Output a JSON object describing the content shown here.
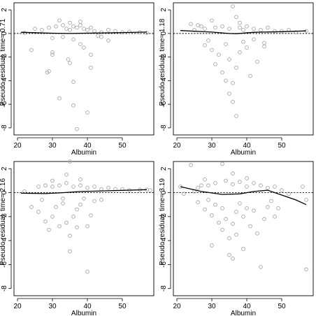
{
  "chart_data": [
    {
      "type": "scatter",
      "xlabel": "Albumin",
      "ylabel": "Pseudo-residual, time= 0.71",
      "xlim": [
        19,
        59
      ],
      "ylim": [
        -8.6,
        2.6
      ],
      "xticks": [
        20,
        30,
        40,
        50
      ],
      "yticks": [
        2,
        0,
        -2,
        -4,
        -6,
        -8
      ],
      "smooth": [
        [
          21,
          0.1
        ],
        [
          30,
          0.02
        ],
        [
          35,
          0.0
        ],
        [
          40,
          0.03
        ],
        [
          47,
          0.06
        ],
        [
          57,
          0.12
        ]
      ],
      "points": [
        [
          24,
          -1.4
        ],
        [
          30,
          -1.6
        ],
        [
          30,
          -1.8
        ],
        [
          29,
          -3.2
        ],
        [
          28.5,
          -3.3
        ],
        [
          32,
          -5.5
        ],
        [
          34.5,
          -2.2
        ],
        [
          35,
          -2.5
        ],
        [
          36,
          -4.1
        ],
        [
          36,
          -6.1
        ],
        [
          37,
          -8.1
        ],
        [
          38,
          -0.9
        ],
        [
          39,
          -1.2
        ],
        [
          40,
          -6.7
        ],
        [
          41,
          -1.8
        ],
        [
          41,
          -2.9
        ],
        [
          44,
          -0.3
        ],
        [
          46,
          -0.6
        ],
        [
          25,
          0.4
        ],
        [
          27,
          0.3
        ],
        [
          29,
          0.5
        ],
        [
          31,
          0.6
        ],
        [
          33,
          0.7
        ],
        [
          34,
          0.4
        ],
        [
          35,
          0.3
        ],
        [
          36,
          0.6
        ],
        [
          37,
          0.5
        ],
        [
          38,
          0.7
        ],
        [
          39,
          0.4
        ],
        [
          40,
          0.3
        ],
        [
          41,
          0.5
        ],
        [
          42,
          0.2
        ],
        [
          44,
          0.1
        ],
        [
          46,
          0.3
        ],
        [
          48,
          0.2
        ],
        [
          50,
          0.1
        ],
        [
          52,
          0.15
        ],
        [
          55,
          0.1
        ],
        [
          57,
          0.05
        ],
        [
          22,
          0.05
        ],
        [
          35,
          0.9
        ],
        [
          32,
          1.1
        ],
        [
          38,
          1.0
        ],
        [
          30,
          -0.4
        ],
        [
          33,
          -0.3
        ],
        [
          36,
          -0.5
        ],
        [
          43,
          -0.2
        ]
      ]
    },
    {
      "type": "scatter",
      "xlabel": "Albumin",
      "ylabel": "Pseudo-residual, time= 1.18",
      "xlim": [
        19,
        59
      ],
      "ylim": [
        -8.6,
        2.6
      ],
      "xticks": [
        20,
        30,
        40,
        50
      ],
      "yticks": [
        2,
        0,
        -2,
        -4,
        -6,
        -8
      ],
      "smooth": [
        [
          21,
          0.25
        ],
        [
          30,
          0.12
        ],
        [
          35,
          0.0
        ],
        [
          37,
          -0.02
        ],
        [
          42,
          0.1
        ],
        [
          50,
          0.15
        ],
        [
          57,
          0.22
        ]
      ],
      "points": [
        [
          24,
          0.8
        ],
        [
          26,
          0.7
        ],
        [
          27,
          0.6
        ],
        [
          28,
          -1.0
        ],
        [
          29,
          -0.6
        ],
        [
          30,
          -1.4
        ],
        [
          31,
          -2.6
        ],
        [
          32,
          -1.8
        ],
        [
          33,
          -3.3
        ],
        [
          34,
          -0.9
        ],
        [
          34,
          -4.0
        ],
        [
          35,
          -2.2
        ],
        [
          35,
          -5.1
        ],
        [
          36,
          -5.8
        ],
        [
          36,
          -4.2
        ],
        [
          37,
          -7.0
        ],
        [
          37,
          -2.9
        ],
        [
          38,
          -1.6
        ],
        [
          39,
          -0.7
        ],
        [
          40,
          -1.2
        ],
        [
          41,
          -3.6
        ],
        [
          42,
          -0.5
        ],
        [
          43,
          -2.4
        ],
        [
          45,
          -0.8
        ],
        [
          45,
          -1.1
        ],
        [
          36,
          2.3
        ],
        [
          37,
          1.4
        ],
        [
          30,
          1.1
        ],
        [
          38,
          0.9
        ],
        [
          25,
          0.3
        ],
        [
          28,
          0.4
        ],
        [
          31,
          0.5
        ],
        [
          33,
          0.6
        ],
        [
          35,
          0.4
        ],
        [
          38,
          0.5
        ],
        [
          40,
          0.6
        ],
        [
          42,
          0.4
        ],
        [
          44,
          0.3
        ],
        [
          46,
          0.5
        ],
        [
          48,
          0.2
        ],
        [
          50,
          0.2
        ],
        [
          52,
          0.3
        ],
        [
          54,
          0.1
        ],
        [
          57,
          0.2
        ],
        [
          39,
          0.3
        ]
      ]
    },
    {
      "type": "scatter",
      "xlabel": "Albumin",
      "ylabel": "Pseudo-residual, time= 2.16",
      "xlim": [
        19,
        59
      ],
      "ylim": [
        -8.6,
        2.6
      ],
      "xticks": [
        20,
        30,
        40,
        50
      ],
      "yticks": [
        2,
        0,
        -2,
        -4,
        -6,
        -8
      ],
      "smooth": [
        [
          21,
          -0.05
        ],
        [
          28,
          -0.08
        ],
        [
          33,
          0.0
        ],
        [
          38,
          0.1
        ],
        [
          45,
          0.15
        ],
        [
          57,
          0.25
        ]
      ],
      "points": [
        [
          22,
          0.1
        ],
        [
          24,
          -1.2
        ],
        [
          26,
          -1.6
        ],
        [
          27,
          -0.6
        ],
        [
          28,
          -2.4
        ],
        [
          29,
          -3.1
        ],
        [
          30,
          -2.0
        ],
        [
          31,
          -1.2
        ],
        [
          32,
          -2.8
        ],
        [
          33,
          -0.9
        ],
        [
          34,
          -2.5
        ],
        [
          35,
          -3.6
        ],
        [
          35,
          -4.9
        ],
        [
          36,
          -2.0
        ],
        [
          37,
          -1.4
        ],
        [
          37,
          -2.9
        ],
        [
          38,
          -1.0
        ],
        [
          39,
          -0.5
        ],
        [
          40,
          -2.8
        ],
        [
          40,
          -6.6
        ],
        [
          41,
          -1.9
        ],
        [
          42,
          -0.7
        ],
        [
          44,
          -0.6
        ],
        [
          35,
          2.6
        ],
        [
          34,
          1.5
        ],
        [
          30,
          1.0
        ],
        [
          38,
          1.1
        ],
        [
          26,
          0.5
        ],
        [
          28,
          0.6
        ],
        [
          30,
          0.5
        ],
        [
          32,
          0.6
        ],
        [
          34,
          0.8
        ],
        [
          36,
          0.5
        ],
        [
          38,
          0.6
        ],
        [
          40,
          0.4
        ],
        [
          42,
          0.5
        ],
        [
          44,
          0.3
        ],
        [
          46,
          0.4
        ],
        [
          48,
          0.3
        ],
        [
          50,
          0.3
        ],
        [
          52,
          0.2
        ],
        [
          55,
          0.25
        ],
        [
          57,
          0.25
        ],
        [
          58,
          0.2
        ],
        [
          33,
          -0.5
        ]
      ]
    },
    {
      "type": "scatter",
      "xlabel": "Albumin",
      "ylabel": "Pseudo-residual, time= 3.19",
      "xlim": [
        19,
        59
      ],
      "ylim": [
        -8.6,
        2.6
      ],
      "xticks": [
        20,
        30,
        40,
        50
      ],
      "yticks": [
        2,
        0,
        -2,
        -4,
        -6,
        -8
      ],
      "smooth": [
        [
          21,
          0.5
        ],
        [
          27,
          0.1
        ],
        [
          33,
          -0.15
        ],
        [
          38,
          -0.1
        ],
        [
          42,
          0.1
        ],
        [
          46,
          0.2
        ],
        [
          50,
          -0.2
        ],
        [
          54,
          -0.6
        ],
        [
          57,
          -1.0
        ]
      ],
      "points": [
        [
          21,
          0.5
        ],
        [
          22,
          -0.1
        ],
        [
          24,
          2.3
        ],
        [
          25,
          0.1
        ],
        [
          26,
          -0.8
        ],
        [
          27,
          0.6
        ],
        [
          28,
          -1.4
        ],
        [
          29,
          -0.6
        ],
        [
          30,
          -1.9
        ],
        [
          30,
          -4.4
        ],
        [
          31,
          -1.0
        ],
        [
          32,
          -2.5
        ],
        [
          33,
          -3.1
        ],
        [
          33,
          -1.3
        ],
        [
          34,
          -2.2
        ],
        [
          35,
          -3.8
        ],
        [
          35,
          -5.2
        ],
        [
          36,
          -5.5
        ],
        [
          36,
          -2.6
        ],
        [
          37,
          -1.6
        ],
        [
          37,
          -3.5
        ],
        [
          38,
          -0.9
        ],
        [
          39,
          -2.0
        ],
        [
          39,
          -4.7
        ],
        [
          40,
          -1.3
        ],
        [
          41,
          -2.8
        ],
        [
          42,
          -1.5
        ],
        [
          43,
          -3.4
        ],
        [
          44,
          -6.2
        ],
        [
          45,
          -2.2
        ],
        [
          46,
          -1.2
        ],
        [
          47,
          -0.7
        ],
        [
          48,
          -2.0
        ],
        [
          49,
          -1.3
        ],
        [
          56,
          0.5
        ],
        [
          57,
          -6.4
        ],
        [
          57,
          -0.6
        ],
        [
          33,
          2.4
        ],
        [
          36,
          1.6
        ],
        [
          28,
          1.1
        ],
        [
          26,
          0.4
        ],
        [
          29,
          0.6
        ],
        [
          31,
          0.8
        ],
        [
          34,
          1.0
        ],
        [
          36,
          0.7
        ],
        [
          38,
          0.9
        ],
        [
          40,
          0.5
        ],
        [
          42,
          0.8
        ],
        [
          44,
          0.6
        ],
        [
          46,
          0.4
        ],
        [
          48,
          0.5
        ],
        [
          50,
          0.2
        ],
        [
          52,
          -0.1
        ],
        [
          40,
          1.2
        ]
      ]
    }
  ]
}
